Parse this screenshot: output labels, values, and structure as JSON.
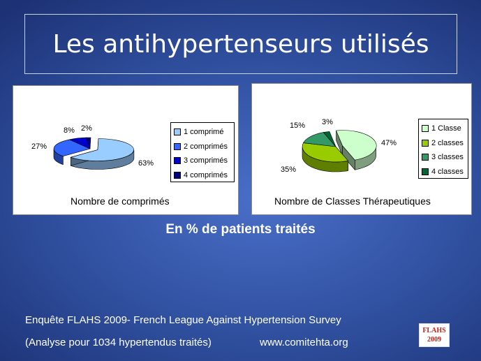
{
  "title": "Les antihypertenseurs utilisés",
  "subtitle": "En % de patients traités",
  "footer": {
    "line1": "Enquête FLAHS 2009- French League Against Hypertension Survey",
    "line2": "(Analyse pour 1034 hypertendus traités)",
    "url": "www.comitehta.org"
  },
  "logo": {
    "line1": "FLAHS",
    "line2": "2009"
  },
  "chart_data": [
    {
      "type": "pie",
      "title": "Nombre de comprimés",
      "categories": [
        "1 comprimé",
        "2 comprimés",
        "3 comprimés",
        "4 comprimés"
      ],
      "values": [
        63,
        27,
        8,
        2
      ],
      "labels": [
        "63%",
        "27%",
        "8%",
        "2%"
      ],
      "colors": [
        "#99ccff",
        "#3366ff",
        "#0000cc",
        "#000080"
      ],
      "exploded": [
        "1 comprimé"
      ],
      "legend": "right"
    },
    {
      "type": "pie",
      "title": "Nombre de Classes Thérapeutiques",
      "categories": [
        "1 Classe",
        "2 classes",
        "3 classes",
        "4 classes"
      ],
      "values": [
        47,
        35,
        15,
        3
      ],
      "labels": [
        "47%",
        "35%",
        "15%",
        "3%"
      ],
      "colors": [
        "#ccffcc",
        "#99cc00",
        "#339966",
        "#006633"
      ],
      "exploded": [
        "1 Classe"
      ],
      "legend": "right"
    }
  ]
}
